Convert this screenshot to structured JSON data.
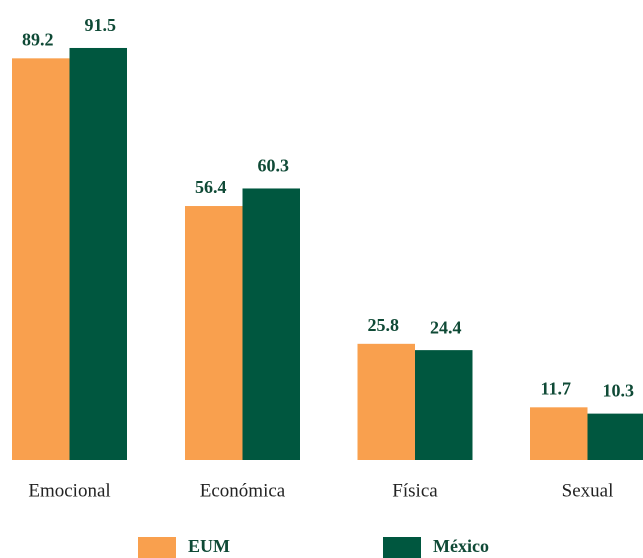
{
  "chart_data": {
    "type": "bar",
    "categories": [
      "Emocional",
      "Económica",
      "Física",
      "Sexual"
    ],
    "series": [
      {
        "name": "EUM",
        "color": "#f9a04e",
        "values": [
          89.2,
          56.4,
          25.8,
          11.7
        ]
      },
      {
        "name": "México",
        "color": "#00573f",
        "values": [
          91.5,
          60.3,
          24.4,
          10.3
        ]
      }
    ]
  }
}
